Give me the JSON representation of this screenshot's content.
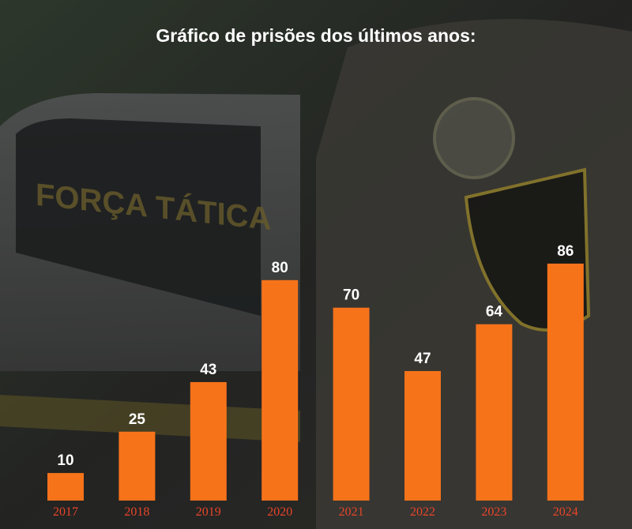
{
  "title": "Gráfico de prisões dos últimos anos:",
  "chart_data": {
    "type": "bar",
    "categories": [
      "2017",
      "2018",
      "2019",
      "2020",
      "2021",
      "2022",
      "2023",
      "2024"
    ],
    "values": [
      10,
      25,
      43,
      80,
      70,
      47,
      64,
      86
    ],
    "color": "#f7731a",
    "label_color": "#e8452a"
  }
}
